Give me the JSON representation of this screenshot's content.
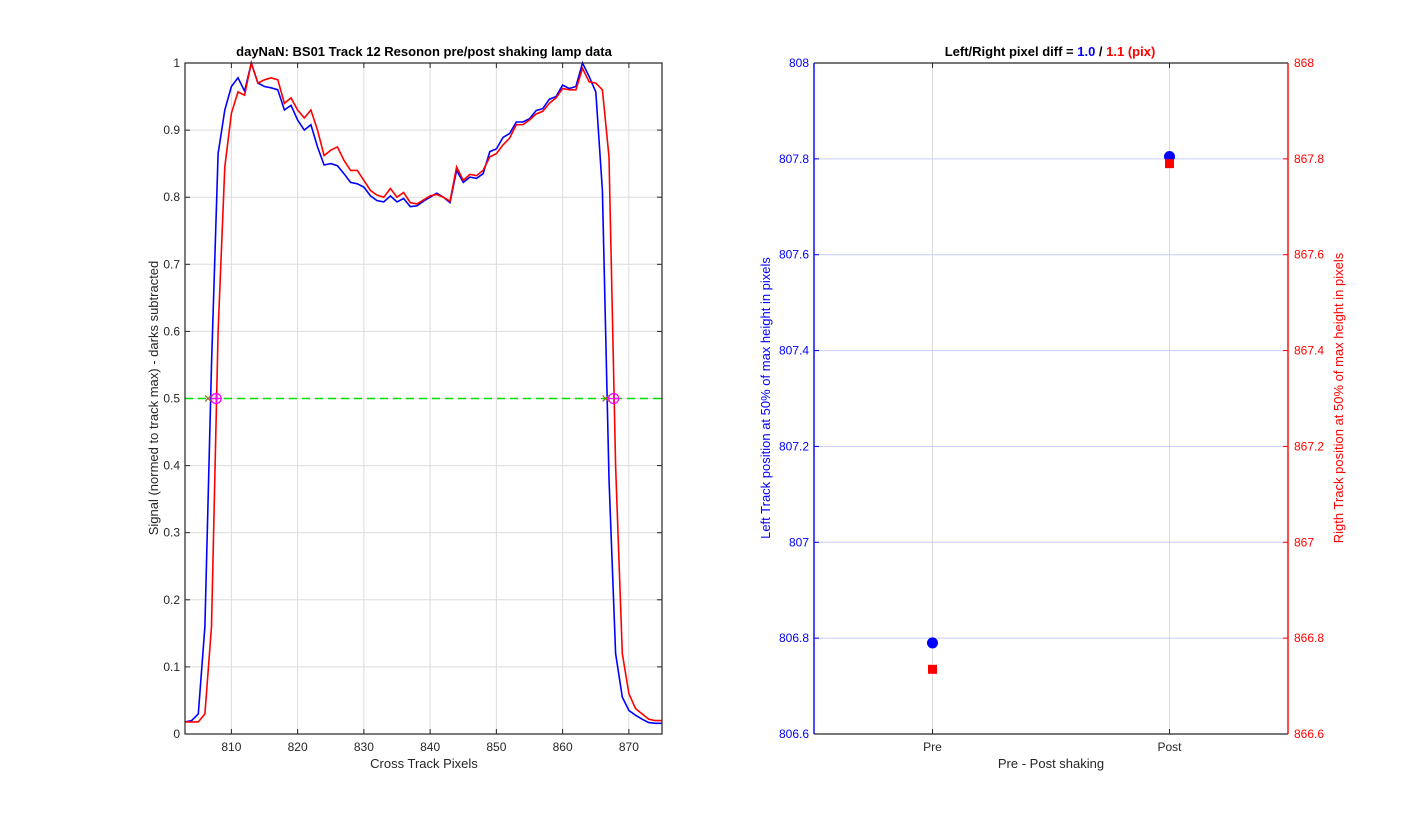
{
  "colors": {
    "blue": "#0000ff",
    "red": "#ff0000",
    "green": "#00dd00",
    "magenta": "#ff00ff",
    "grid": "#dcdcdc",
    "hgrid_right": "#ccccff"
  },
  "chart_data": [
    {
      "type": "line",
      "title": "dayNaN: BS01  Track 12 Resonon pre/post shaking lamp data",
      "xlabel": "Cross Track Pixels",
      "ylabel": "Signal (normed to track max) - darks subtracted",
      "xlim": [
        803,
        875
      ],
      "ylim": [
        0,
        1
      ],
      "xticks": [
        "810",
        "820",
        "830",
        "840",
        "850",
        "860",
        "870"
      ],
      "yticks": [
        "0",
        "0.1",
        "0.2",
        "0.3",
        "0.4",
        "0.5",
        "0.6",
        "0.7",
        "0.8",
        "0.9",
        "1"
      ],
      "grid": true,
      "threshold": 0.5,
      "markers_at_half": [
        807.7,
        867.7
      ],
      "series": [
        {
          "color": "blue",
          "x": [
            803,
            804,
            805,
            806,
            807,
            808,
            809,
            810,
            811,
            812,
            813,
            814,
            815,
            816,
            817,
            818,
            819,
            820,
            821,
            822,
            823,
            824,
            825,
            826,
            827,
            828,
            829,
            830,
            831,
            832,
            833,
            834,
            835,
            836,
            837,
            838,
            839,
            840,
            841,
            842,
            843,
            844,
            845,
            846,
            847,
            848,
            849,
            850,
            851,
            852,
            853,
            854,
            855,
            856,
            857,
            858,
            859,
            860,
            861,
            862,
            863,
            864,
            865,
            866,
            867,
            868,
            869,
            870,
            871,
            872,
            873,
            874,
            875
          ],
          "y": [
            0.018,
            0.02,
            0.03,
            0.16,
            0.55,
            0.865,
            0.93,
            0.965,
            0.978,
            0.958,
            1.0,
            0.97,
            0.965,
            0.963,
            0.96,
            0.93,
            0.937,
            0.915,
            0.9,
            0.908,
            0.875,
            0.848,
            0.85,
            0.847,
            0.835,
            0.822,
            0.82,
            0.815,
            0.802,
            0.795,
            0.793,
            0.802,
            0.793,
            0.798,
            0.786,
            0.787,
            0.794,
            0.8,
            0.806,
            0.8,
            0.792,
            0.84,
            0.822,
            0.83,
            0.828,
            0.835,
            0.868,
            0.872,
            0.889,
            0.895,
            0.912,
            0.912,
            0.917,
            0.929,
            0.932,
            0.946,
            0.95,
            0.967,
            0.962,
            0.965,
            1.0,
            0.98,
            0.957,
            0.81,
            0.38,
            0.12,
            0.055,
            0.035,
            0.028,
            0.022,
            0.017,
            0.016,
            0.016
          ]
        },
        {
          "color": "red",
          "x": [
            803,
            804,
            805,
            806,
            807,
            808,
            809,
            810,
            811,
            812,
            813,
            814,
            815,
            816,
            817,
            818,
            819,
            820,
            821,
            822,
            823,
            824,
            825,
            826,
            827,
            828,
            829,
            830,
            831,
            832,
            833,
            834,
            835,
            836,
            837,
            838,
            839,
            840,
            841,
            842,
            843,
            844,
            845,
            846,
            847,
            848,
            849,
            850,
            851,
            852,
            853,
            854,
            855,
            856,
            857,
            858,
            859,
            860,
            861,
            862,
            863,
            864,
            865,
            866,
            867,
            868,
            869,
            870,
            871,
            872,
            873,
            874,
            875
          ],
          "y": [
            0.018,
            0.018,
            0.018,
            0.03,
            0.16,
            0.6,
            0.845,
            0.925,
            0.957,
            0.952,
            1.0,
            0.97,
            0.975,
            0.978,
            0.975,
            0.94,
            0.948,
            0.93,
            0.918,
            0.93,
            0.9,
            0.862,
            0.87,
            0.875,
            0.855,
            0.84,
            0.84,
            0.825,
            0.81,
            0.803,
            0.8,
            0.813,
            0.8,
            0.807,
            0.792,
            0.79,
            0.796,
            0.802,
            0.804,
            0.8,
            0.794,
            0.845,
            0.825,
            0.834,
            0.832,
            0.84,
            0.86,
            0.865,
            0.878,
            0.888,
            0.908,
            0.908,
            0.915,
            0.924,
            0.928,
            0.94,
            0.948,
            0.962,
            0.96,
            0.96,
            0.992,
            0.972,
            0.97,
            0.96,
            0.86,
            0.4,
            0.12,
            0.06,
            0.038,
            0.03,
            0.022,
            0.02,
            0.02
          ]
        }
      ]
    },
    {
      "type": "scatter",
      "title_prefix": "Left/Right pixel diff = ",
      "title_left_value": "1.0",
      "title_separator": " / ",
      "title_right_value": "1.1 (pix)",
      "xlabel": "Pre - Post shaking",
      "ylabel_left": "Left Track position at 50% of max height in pixels",
      "ylabel_right": "Rigth Track position at 50% of max height in pixels",
      "categories": [
        "Pre",
        "Post"
      ],
      "ylim_left": [
        806.6,
        808
      ],
      "ylim_right": [
        866.6,
        868
      ],
      "yticks_left": [
        "806.6",
        "806.8",
        "807",
        "807.2",
        "807.4",
        "807.6",
        "807.8",
        "808"
      ],
      "yticks_right": [
        "866.6",
        "866.8",
        "867",
        "867.2",
        "867.4",
        "867.6",
        "867.8",
        "868"
      ],
      "grid": true,
      "series": [
        {
          "axis": "left",
          "color": "blue",
          "marker": "circle",
          "values": [
            806.79,
            807.805
          ]
        },
        {
          "axis": "right",
          "color": "red",
          "marker": "square",
          "values": [
            866.735,
            867.79
          ]
        }
      ]
    }
  ]
}
